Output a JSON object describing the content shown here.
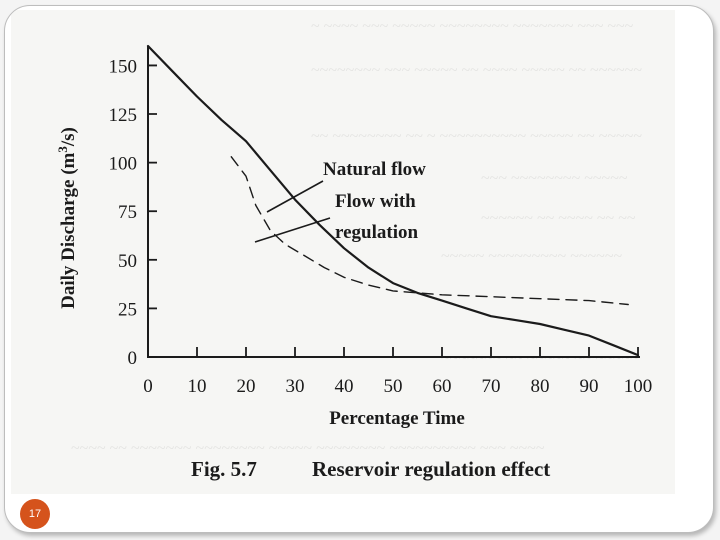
{
  "slide": {
    "page_number": "17",
    "background_color": "#ffffff",
    "badge_color": "#d5531c"
  },
  "chart_data": {
    "type": "line",
    "title": "",
    "caption_fig": "Fig. 5.7",
    "caption_text": "Reservoir regulation effect",
    "xlabel": "Percentage Time",
    "ylabel_main": "Daily Discharge (m",
    "ylabel_sup": "3",
    "ylabel_end": "/s)",
    "xlim": [
      0,
      100
    ],
    "ylim": [
      0,
      160
    ],
    "x_ticks": [
      0,
      10,
      20,
      30,
      40,
      50,
      60,
      70,
      80,
      90,
      100
    ],
    "x_tick_labels": [
      "0",
      "10",
      "20",
      "30",
      "40",
      "50",
      "60",
      "70",
      "80",
      "90",
      "100"
    ],
    "y_ticks": [
      0,
      25,
      50,
      75,
      100,
      125,
      150
    ],
    "y_tick_labels": [
      "0",
      "25",
      "50",
      "75",
      "100",
      "125",
      "150"
    ],
    "grid": false,
    "series": [
      {
        "name": "Natural flow",
        "style": "solid",
        "x": [
          0,
          5,
          10,
          15,
          20,
          25,
          30,
          35,
          40,
          45,
          50,
          55,
          60,
          65,
          70,
          75,
          80,
          85,
          90,
          95,
          100
        ],
        "y": [
          160,
          147,
          134,
          122,
          111,
          96,
          81,
          68,
          56,
          46,
          38,
          33,
          29,
          25,
          21,
          19,
          17,
          14,
          11,
          6,
          1
        ]
      },
      {
        "name": "Flow with regulation",
        "style": "dashed",
        "x": [
          17,
          20,
          22,
          25,
          28,
          32,
          36,
          40,
          45,
          50,
          55,
          60,
          70,
          80,
          90,
          98
        ],
        "y": [
          103,
          93,
          78,
          65,
          58,
          52,
          46,
          41,
          37,
          34,
          33,
          32,
          31,
          30,
          29,
          27
        ]
      }
    ],
    "annotations": [
      {
        "text": "Natural flow",
        "points_to": "Natural flow"
      },
      {
        "text": "Flow with",
        "points_to": "Flow with regulation"
      },
      {
        "text": "regulation",
        "points_to": "Flow with regulation"
      }
    ]
  }
}
